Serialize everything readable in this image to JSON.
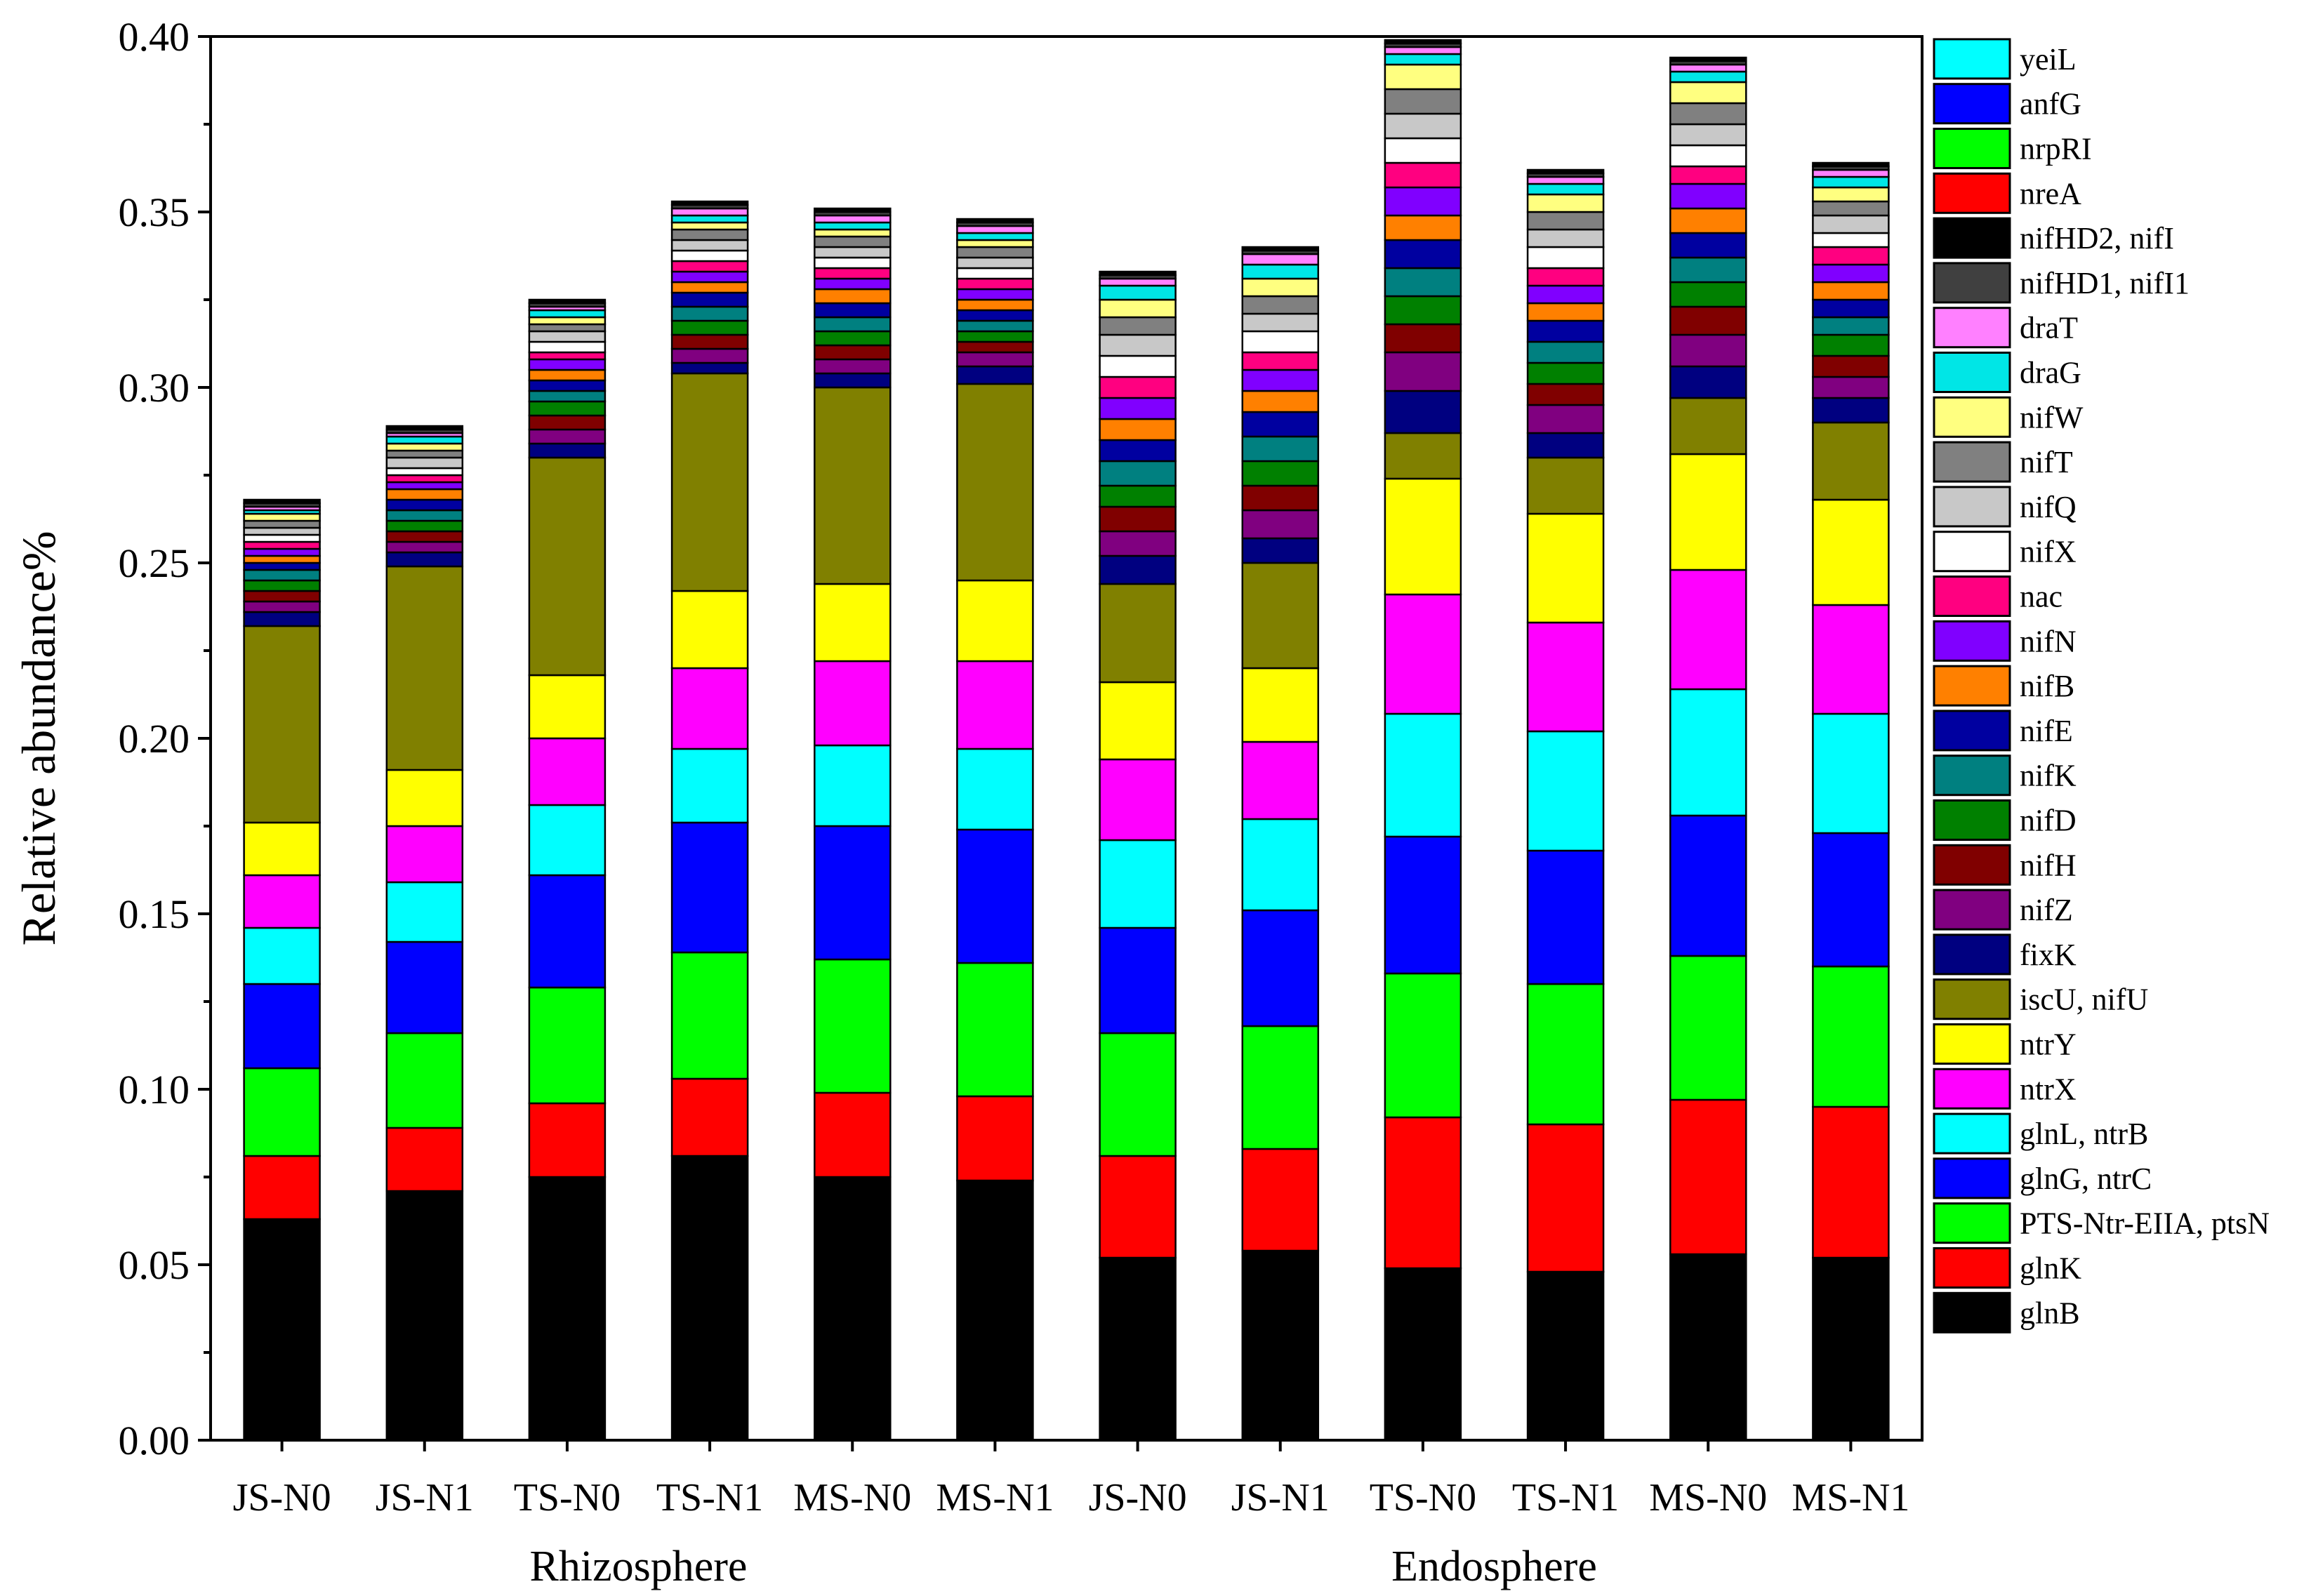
{
  "chart_data": {
    "type": "bar",
    "stacked": true,
    "title": "",
    "xlabel": "",
    "ylabel": "Relative abundance%",
    "ylim": [
      0,
      0.4
    ],
    "yticks": [
      "0.00",
      "0.05",
      "0.10",
      "0.15",
      "0.20",
      "0.25",
      "0.30",
      "0.35",
      "0.40"
    ],
    "grid": false,
    "legend_position": "right",
    "categories": [
      "JS-N0",
      "JS-N1",
      "TS-N0",
      "TS-N1",
      "MS-N0",
      "MS-N1",
      "JS-N0",
      "JS-N1",
      "TS-N0",
      "TS-N1",
      "MS-N0",
      "MS-N1"
    ],
    "groups": [
      {
        "label": "Rhizosphere",
        "start": 0,
        "end": 5
      },
      {
        "label": "Endosphere",
        "start": 6,
        "end": 11
      }
    ],
    "series": [
      {
        "name": "glnB",
        "color": "#000000",
        "values": [
          0.063,
          0.071,
          0.075,
          0.081,
          0.075,
          0.074,
          0.052,
          0.054,
          0.049,
          0.048,
          0.053,
          0.052
        ]
      },
      {
        "name": "glnK",
        "color": "#FF0000",
        "values": [
          0.018,
          0.018,
          0.021,
          0.022,
          0.024,
          0.024,
          0.029,
          0.029,
          0.043,
          0.042,
          0.044,
          0.043
        ]
      },
      {
        "name": "PTS-Ntr-EIIA, ptsN",
        "color": "#00FF00",
        "values": [
          0.025,
          0.027,
          0.033,
          0.036,
          0.038,
          0.038,
          0.035,
          0.035,
          0.041,
          0.04,
          0.041,
          0.04
        ]
      },
      {
        "name": "glnG, ntrC",
        "color": "#0000FF",
        "values": [
          0.024,
          0.026,
          0.032,
          0.037,
          0.038,
          0.038,
          0.03,
          0.033,
          0.039,
          0.038,
          0.04,
          0.038
        ]
      },
      {
        "name": "glnL, ntrB",
        "color": "#00FFFF",
        "values": [
          0.016,
          0.017,
          0.02,
          0.021,
          0.023,
          0.023,
          0.025,
          0.026,
          0.035,
          0.034,
          0.036,
          0.034
        ]
      },
      {
        "name": "ntrX",
        "color": "#FF00FF",
        "values": [
          0.015,
          0.016,
          0.019,
          0.023,
          0.024,
          0.025,
          0.023,
          0.022,
          0.034,
          0.031,
          0.034,
          0.031
        ]
      },
      {
        "name": "ntrY",
        "color": "#FFFF00",
        "values": [
          0.015,
          0.016,
          0.018,
          0.022,
          0.022,
          0.023,
          0.022,
          0.021,
          0.033,
          0.031,
          0.033,
          0.03
        ]
      },
      {
        "name": "iscU, nifU",
        "color": "#808000",
        "values": [
          0.056,
          0.058,
          0.062,
          0.062,
          0.056,
          0.056,
          0.028,
          0.03,
          0.013,
          0.016,
          0.016,
          0.022
        ]
      },
      {
        "name": "fixK",
        "color": "#000080",
        "values": [
          0.004,
          0.004,
          0.004,
          0.003,
          0.004,
          0.005,
          0.008,
          0.007,
          0.012,
          0.007,
          0.009,
          0.007
        ]
      },
      {
        "name": "nifZ",
        "color": "#800080",
        "values": [
          0.003,
          0.003,
          0.004,
          0.004,
          0.004,
          0.004,
          0.007,
          0.008,
          0.011,
          0.008,
          0.009,
          0.006
        ]
      },
      {
        "name": "nifH",
        "color": "#800000",
        "values": [
          0.003,
          0.003,
          0.004,
          0.004,
          0.004,
          0.003,
          0.007,
          0.007,
          0.008,
          0.006,
          0.008,
          0.006
        ]
      },
      {
        "name": "nifD",
        "color": "#008000",
        "values": [
          0.003,
          0.003,
          0.004,
          0.004,
          0.004,
          0.003,
          0.006,
          0.007,
          0.008,
          0.006,
          0.007,
          0.006
        ]
      },
      {
        "name": "nifK",
        "color": "#008080",
        "values": [
          0.003,
          0.003,
          0.003,
          0.004,
          0.004,
          0.003,
          0.007,
          0.007,
          0.008,
          0.006,
          0.007,
          0.005
        ]
      },
      {
        "name": "nifE",
        "color": "#0000A0",
        "values": [
          0.002,
          0.003,
          0.003,
          0.004,
          0.004,
          0.003,
          0.006,
          0.007,
          0.008,
          0.006,
          0.007,
          0.005
        ]
      },
      {
        "name": "nifB",
        "color": "#FF8000",
        "values": [
          0.002,
          0.003,
          0.003,
          0.003,
          0.004,
          0.003,
          0.006,
          0.006,
          0.007,
          0.005,
          0.007,
          0.005
        ]
      },
      {
        "name": "nifN",
        "color": "#8000FF",
        "values": [
          0.002,
          0.002,
          0.003,
          0.003,
          0.003,
          0.003,
          0.006,
          0.006,
          0.008,
          0.005,
          0.007,
          0.005
        ]
      },
      {
        "name": "nac",
        "color": "#FF0080",
        "values": [
          0.002,
          0.002,
          0.002,
          0.003,
          0.003,
          0.003,
          0.006,
          0.005,
          0.007,
          0.005,
          0.005,
          0.005
        ]
      },
      {
        "name": "nifX",
        "color": "#FFFFFF",
        "values": [
          0.002,
          0.002,
          0.003,
          0.003,
          0.003,
          0.003,
          0.006,
          0.006,
          0.007,
          0.006,
          0.006,
          0.004
        ]
      },
      {
        "name": "nifQ",
        "color": "#C8C8C8",
        "values": [
          0.002,
          0.003,
          0.003,
          0.003,
          0.003,
          0.003,
          0.006,
          0.005,
          0.007,
          0.005,
          0.006,
          0.005
        ]
      },
      {
        "name": "nifT",
        "color": "#808080",
        "values": [
          0.002,
          0.002,
          0.002,
          0.003,
          0.003,
          0.003,
          0.005,
          0.005,
          0.007,
          0.005,
          0.006,
          0.004
        ]
      },
      {
        "name": "nifW",
        "color": "#FFFF80",
        "values": [
          0.002,
          0.002,
          0.002,
          0.002,
          0.002,
          0.002,
          0.005,
          0.005,
          0.007,
          0.005,
          0.006,
          0.004
        ]
      },
      {
        "name": "draG",
        "color": "#00E6E6",
        "values": [
          0.001,
          0.002,
          0.002,
          0.002,
          0.002,
          0.002,
          0.004,
          0.004,
          0.003,
          0.003,
          0.003,
          0.003
        ]
      },
      {
        "name": "draT",
        "color": "#FF80FF",
        "values": [
          0.001,
          0.001,
          0.001,
          0.002,
          0.002,
          0.002,
          0.002,
          0.003,
          0.002,
          0.002,
          0.002,
          0.002
        ]
      },
      {
        "name": "nifHD1, nifI1",
        "color": "#404040",
        "values": [
          0.001,
          0.001,
          0.001,
          0.001,
          0.001,
          0.001,
          0.001,
          0.001,
          0.001,
          0.001,
          0.001,
          0.001
        ]
      },
      {
        "name": "nifHD2, nifI",
        "color": "#000000",
        "values": [
          0.001,
          0.001,
          0.001,
          0.001,
          0.001,
          0.001,
          0.001,
          0.001,
          0.001,
          0.001,
          0.001,
          0.001
        ]
      },
      {
        "name": "nreA",
        "color": "#FF0000",
        "values": [
          0.0,
          0.0,
          0.0,
          0.0,
          0.0,
          0.0,
          0.0,
          0.0,
          0.0,
          0.0,
          0.0,
          0.0
        ]
      },
      {
        "name": "nrpRI",
        "color": "#00FF00",
        "values": [
          0.0,
          0.0,
          0.0,
          0.0,
          0.0,
          0.0,
          0.0,
          0.0,
          0.0,
          0.0,
          0.0,
          0.0
        ]
      },
      {
        "name": "anfG",
        "color": "#0000FF",
        "values": [
          0.0,
          0.0,
          0.0,
          0.0,
          0.0,
          0.0,
          0.0,
          0.0,
          0.0,
          0.0,
          0.0,
          0.0
        ]
      },
      {
        "name": "yeiL",
        "color": "#00FFFF",
        "values": [
          0.0,
          0.0,
          0.0,
          0.0,
          0.0,
          0.0,
          0.0,
          0.0,
          0.0,
          0.0,
          0.0,
          0.0
        ]
      }
    ]
  }
}
